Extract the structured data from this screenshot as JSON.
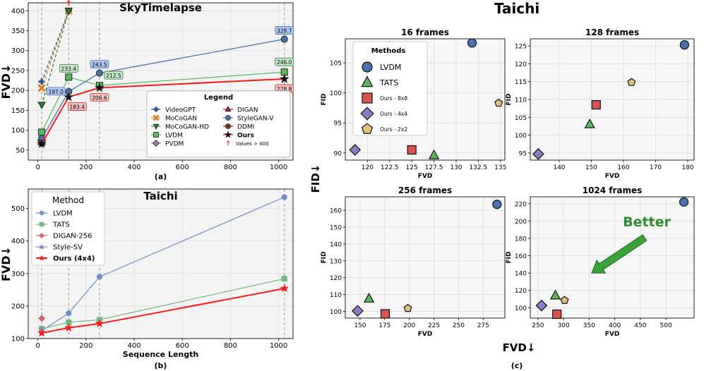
{
  "panel_labels": {
    "a": "(a)",
    "b": "(b)",
    "c": "(c)"
  },
  "chart_data": [
    {
      "id": "a",
      "type": "line",
      "title": "SkyTimelapse",
      "ylabel": "FVD↓",
      "xlabel": "",
      "xlim": [
        -40,
        1060
      ],
      "ylim": [
        25,
        420
      ],
      "xticks": [
        0,
        200,
        400,
        600,
        800,
        1000
      ],
      "yticks": [
        50,
        100,
        150,
        200,
        250,
        300,
        350,
        400
      ],
      "grid": true,
      "vlines": [
        16,
        128,
        256,
        1024
      ],
      "legend": {
        "title": "Legend",
        "position": "lower-right",
        "note": "Values > 400"
      },
      "series": [
        {
          "name": "VideoGPT",
          "color": "#1f4e8c",
          "marker": "plus",
          "dash": "dash",
          "x": [
            16,
            128
          ],
          "y": [
            222,
            400
          ]
        },
        {
          "name": "MoCoGAN",
          "color": "#e07b1f",
          "marker": "x",
          "dash": "dash",
          "x": [
            16,
            128
          ],
          "y": [
            206,
            400
          ]
        },
        {
          "name": "MoCoGAN-HD",
          "color": "#2e7d32",
          "marker": "tri-down",
          "dash": "dash",
          "x": [
            16,
            128
          ],
          "y": [
            164,
            400
          ]
        },
        {
          "name": "LVDM",
          "color": "#5cb85c",
          "marker": "square",
          "dash": "solid",
          "x": [
            16,
            128,
            256,
            1024
          ],
          "y": [
            95,
            233.4,
            212.5,
            246.0
          ]
        },
        {
          "name": "PVDM",
          "color": "#8e7cc3",
          "marker": "diamond",
          "dash": "solid",
          "x": [
            16
          ],
          "y": [
            75
          ]
        },
        {
          "name": "DIGAN",
          "color": "#a52a2a",
          "marker": "triangle",
          "dash": "solid",
          "x": [
            16
          ],
          "y": [
            70
          ]
        },
        {
          "name": "StyleGAN-V",
          "color": "#4a72b0",
          "marker": "circle",
          "dash": "solid",
          "x": [
            16,
            128,
            256,
            1024
          ],
          "y": [
            79,
            197.0,
            243.5,
            328.7
          ]
        },
        {
          "name": "DDMI",
          "color": "#8b4513",
          "marker": "circle-dot",
          "dash": "solid",
          "x": [
            16
          ],
          "y": [
            67
          ]
        },
        {
          "name": "Ours",
          "color": "#ff1a1a",
          "marker": "star",
          "dash": "solid",
          "x": [
            16,
            128,
            256,
            1024
          ],
          "y": [
            66,
            183.4,
            206.6,
            228.8
          ]
        }
      ],
      "annotations": [
        {
          "text": "328.7",
          "x": 1024,
          "y": 328.7,
          "series": "StyleGAN-V"
        },
        {
          "text": "243.5",
          "x": 256,
          "y": 243.5,
          "series": "StyleGAN-V"
        },
        {
          "text": "197.0",
          "x": 128,
          "y": 197.0,
          "series": "StyleGAN-V"
        },
        {
          "text": "233.4",
          "x": 128,
          "y": 233.4,
          "series": "LVDM"
        },
        {
          "text": "212.5",
          "x": 256,
          "y": 212.5,
          "series": "LVDM"
        },
        {
          "text": "246.0",
          "x": 1024,
          "y": 246.0,
          "series": "LVDM"
        },
        {
          "text": "183.4",
          "x": 128,
          "y": 183.4,
          "series": "Ours"
        },
        {
          "text": "206.6",
          "x": 256,
          "y": 206.6,
          "series": "Ours"
        },
        {
          "text": "228.8",
          "x": 1024,
          "y": 228.8,
          "series": "Ours"
        }
      ]
    },
    {
      "id": "b",
      "type": "line",
      "title": "Taichi",
      "xlabel": "Sequence Length",
      "ylabel": "FVD↓",
      "xlim": [
        -40,
        1060
      ],
      "ylim": [
        100,
        560
      ],
      "xticks": [
        0,
        200,
        400,
        600,
        800,
        1000
      ],
      "yticks": [
        100,
        200,
        300,
        400,
        500
      ],
      "grid": true,
      "vlines": [
        16,
        128,
        256,
        1024
      ],
      "legend": {
        "title": "Method",
        "position": "upper-left"
      },
      "series": [
        {
          "name": "LVDM",
          "color": "#6f8fc7",
          "marker": "circle",
          "x": [
            16,
            128,
            256,
            1024
          ],
          "y": [
            124,
            178,
            290,
            535
          ]
        },
        {
          "name": "TATS",
          "color": "#72b97c",
          "marker": "square",
          "x": [
            16,
            128,
            256,
            1024
          ],
          "y": [
            130,
            150,
            158,
            284
          ]
        },
        {
          "name": "DIGAN-256",
          "color": "#d2646f",
          "marker": "diamond",
          "x": [
            16
          ],
          "y": [
            162
          ]
        },
        {
          "name": "Style-SV",
          "color": "#8d84c9",
          "marker": "triangle",
          "x": [
            16
          ],
          "y": [
            128
          ]
        },
        {
          "name": "Ours (4x4)",
          "color": "#ff1a1a",
          "marker": "star",
          "x": [
            16,
            128,
            256,
            1024
          ],
          "y": [
            117,
            133,
            146,
            254
          ]
        }
      ]
    },
    {
      "id": "c1",
      "type": "scatter",
      "group_title": "Taichi",
      "title": "16 frames",
      "xlabel": "FVD",
      "ylabel": "FID",
      "xlim": [
        117.5,
        135.5
      ],
      "ylim": [
        88.8,
        109
      ],
      "xticks": [
        120,
        122.5,
        125,
        127.5,
        130,
        132.5,
        135
      ],
      "yticks": [
        90,
        95,
        100,
        105
      ],
      "legend": {
        "title": "Methods",
        "position": "upper-left"
      },
      "series": [
        {
          "name": "LVDM",
          "marker": "circle",
          "color": "#4a72b0",
          "x": [
            131.8
          ],
          "y": [
            108.3
          ]
        },
        {
          "name": "TATS",
          "marker": "triangle",
          "color": "#5cb85c",
          "x": [
            127.5
          ],
          "y": [
            89.6
          ]
        },
        {
          "name": "Ours - 8x8",
          "marker": "square",
          "color": "#d9534f",
          "x": [
            125.0
          ],
          "y": [
            90.5
          ]
        },
        {
          "name": "Ours - 4x4",
          "marker": "diamond",
          "color": "#8e7cc3",
          "x": [
            118.6
          ],
          "y": [
            90.5
          ]
        },
        {
          "name": "Ours - 2x2",
          "marker": "pentagon",
          "color": "#e0c27a",
          "x": [
            134.8
          ],
          "y": [
            98.3
          ]
        }
      ]
    },
    {
      "id": "c2",
      "type": "scatter",
      "title": "128 frames",
      "xlabel": "FVD",
      "ylabel": "FID",
      "xlim": [
        131,
        182
      ],
      "ylim": [
        93,
        127
      ],
      "xticks": [
        140,
        150,
        160,
        170,
        180
      ],
      "yticks": [
        95,
        100,
        105,
        110,
        115,
        120,
        125
      ],
      "series": [
        {
          "name": "LVDM",
          "marker": "circle",
          "color": "#4a72b0",
          "x": [
            179
          ],
          "y": [
            125.3
          ]
        },
        {
          "name": "TATS",
          "marker": "triangle",
          "color": "#5cb85c",
          "x": [
            149.5
          ],
          "y": [
            103
          ]
        },
        {
          "name": "Ours - 8x8",
          "marker": "square",
          "color": "#d9534f",
          "x": [
            151.5
          ],
          "y": [
            108.5
          ]
        },
        {
          "name": "Ours - 4x4",
          "marker": "diamond",
          "color": "#8e7cc3",
          "x": [
            133.5
          ],
          "y": [
            94.7
          ]
        },
        {
          "name": "Ours - 2x2",
          "marker": "pentagon",
          "color": "#e0c27a",
          "x": [
            162.5
          ],
          "y": [
            114.8
          ]
        }
      ]
    },
    {
      "id": "c3",
      "type": "scatter",
      "title": "256 frames",
      "xlabel": "FVD",
      "ylabel": "FID",
      "xlim": [
        135,
        297
      ],
      "ylim": [
        96,
        168
      ],
      "xticks": [
        150,
        175,
        200,
        225,
        250,
        275
      ],
      "yticks": [
        100,
        110,
        120,
        130,
        140,
        150,
        160
      ],
      "series": [
        {
          "name": "LVDM",
          "marker": "circle",
          "color": "#4a72b0",
          "x": [
            289
          ],
          "y": [
            163.5
          ]
        },
        {
          "name": "TATS",
          "marker": "triangle",
          "color": "#5cb85c",
          "x": [
            159
          ],
          "y": [
            107.5
          ]
        },
        {
          "name": "Ours - 8x8",
          "marker": "square",
          "color": "#d9534f",
          "x": [
            175.5
          ],
          "y": [
            98.5
          ]
        },
        {
          "name": "Ours - 4x4",
          "marker": "diamond",
          "color": "#8e7cc3",
          "x": [
            147.5
          ],
          "y": [
            100.3
          ]
        },
        {
          "name": "Ours - 2x2",
          "marker": "pentagon",
          "color": "#e0c27a",
          "x": [
            198.5
          ],
          "y": [
            101.8
          ]
        }
      ]
    },
    {
      "id": "c4",
      "type": "scatter",
      "title": "1024 frames",
      "xlabel": "FVD",
      "ylabel": "FID",
      "xlim": [
        235,
        555
      ],
      "ylim": [
        88,
        228
      ],
      "xticks": [
        250,
        300,
        350,
        400,
        450,
        500
      ],
      "yticks": [
        100,
        120,
        140,
        160,
        180,
        200,
        220
      ],
      "annotation": {
        "text": "Better",
        "color": "#2e8b2e"
      },
      "series": [
        {
          "name": "LVDM",
          "marker": "circle",
          "color": "#4a72b0",
          "x": [
            535
          ],
          "y": [
            222
          ]
        },
        {
          "name": "TATS",
          "marker": "triangle",
          "color": "#5cb85c",
          "x": [
            284
          ],
          "y": [
            114
          ]
        },
        {
          "name": "Ours - 8x8",
          "marker": "square",
          "color": "#d9534f",
          "x": [
            287
          ],
          "y": [
            92.5
          ]
        },
        {
          "name": "Ours - 4x4",
          "marker": "diamond",
          "color": "#8e7cc3",
          "x": [
            257
          ],
          "y": [
            102.5
          ]
        },
        {
          "name": "Ours - 2x2",
          "marker": "pentagon",
          "color": "#e0c27a",
          "x": [
            302
          ],
          "y": [
            108.5
          ]
        }
      ]
    }
  ],
  "shared_labels": {
    "c_ylabel": "FID↓",
    "c_xlabel": "FVD↓"
  }
}
